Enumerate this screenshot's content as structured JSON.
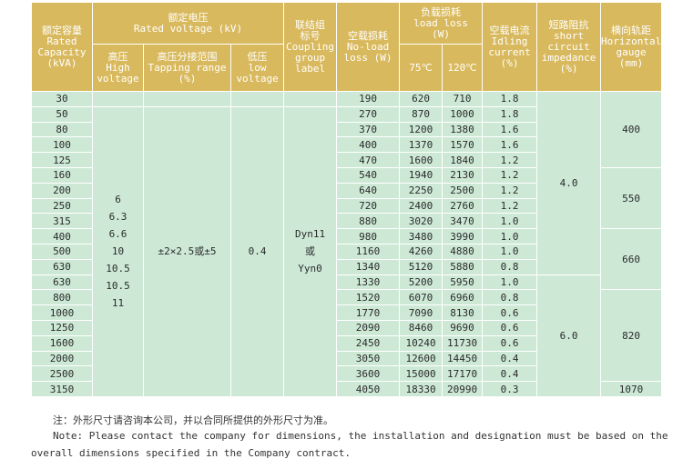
{
  "header": {
    "capacity": [
      "额定容量",
      "Rated",
      "Capacity",
      "(kVA)"
    ],
    "rated_voltage": [
      "额定电压",
      "Rated voltage (kV)"
    ],
    "hv": [
      "高压",
      "High",
      "voltage"
    ],
    "tapping": [
      "高压分接范围",
      "Tapping range",
      "(%)"
    ],
    "lv": [
      "低压",
      "low",
      "voltage"
    ],
    "coupling": [
      "联结组",
      "标号",
      "Coupling",
      "group",
      "label"
    ],
    "noload": [
      "空载损耗",
      "No-load",
      "loss (W)"
    ],
    "load_loss": [
      "负载损耗",
      "load loss",
      "(W)"
    ],
    "t75": "75℃",
    "t120": "120℃",
    "idle": [
      "空载电流",
      "Idling",
      "current",
      "(%)"
    ],
    "impedance": [
      "短路阻抗",
      "short",
      "circuit",
      "impedance",
      "(%)"
    ],
    "gauge": [
      "横向轨距",
      "Horizontal",
      "gauge",
      "(mm)"
    ]
  },
  "merged": {
    "hv_values": [
      "6",
      "6.3",
      "6.6",
      "10",
      "10.5",
      "10.5",
      "11"
    ],
    "tapping_value": "±2×2.5或±5",
    "lv_value": "0.4",
    "coupling_values": [
      "Dyn11",
      "或",
      "Yyn0"
    ],
    "impedance_1": "4.0",
    "impedance_2": "6.0",
    "gauge_400": "400",
    "gauge_550": "550",
    "gauge_660": "660",
    "gauge_820": "820",
    "gauge_1070": "1070"
  },
  "rows": [
    [
      "30",
      "190",
      "620",
      "710",
      "1.8"
    ],
    [
      "50",
      "270",
      "870",
      "1000",
      "1.8"
    ],
    [
      "80",
      "370",
      "1200",
      "1380",
      "1.6"
    ],
    [
      "100",
      "400",
      "1370",
      "1570",
      "1.6"
    ],
    [
      "125",
      "470",
      "1600",
      "1840",
      "1.2"
    ],
    [
      "160",
      "540",
      "1940",
      "2130",
      "1.2"
    ],
    [
      "200",
      "640",
      "2250",
      "2500",
      "1.2"
    ],
    [
      "250",
      "720",
      "2400",
      "2760",
      "1.2"
    ],
    [
      "315",
      "880",
      "3020",
      "3470",
      "1.0"
    ],
    [
      "400",
      "980",
      "3480",
      "3990",
      "1.0"
    ],
    [
      "500",
      "1160",
      "4260",
      "4880",
      "1.0"
    ],
    [
      "630",
      "1340",
      "5120",
      "5880",
      "0.8"
    ],
    [
      "630",
      "1330",
      "5200",
      "5950",
      "1.0"
    ],
    [
      "800",
      "1520",
      "6070",
      "6960",
      "0.8"
    ],
    [
      "1000",
      "1770",
      "7090",
      "8130",
      "0.6"
    ],
    [
      "1250",
      "2090",
      "8460",
      "9690",
      "0.6"
    ],
    [
      "1600",
      "2450",
      "10240",
      "11730",
      "0.6"
    ],
    [
      "2000",
      "3050",
      "12600",
      "14450",
      "0.4"
    ],
    [
      "2500",
      "3600",
      "15000",
      "17170",
      "0.4"
    ],
    [
      "3150",
      "4050",
      "18330",
      "20990",
      "0.3"
    ]
  ],
  "notes": {
    "zh": "注：外形尺寸请咨询本公司，并以合同所提供的外形尺寸为准。",
    "en_line1": "Note: Please contact the company for dimensions, the installation and designation must be based on the",
    "en_line2": "overall dimensions specified in the Company contract."
  },
  "colors": {
    "header_bg": "#d9b95d",
    "body_bg": "#cde9d6"
  }
}
